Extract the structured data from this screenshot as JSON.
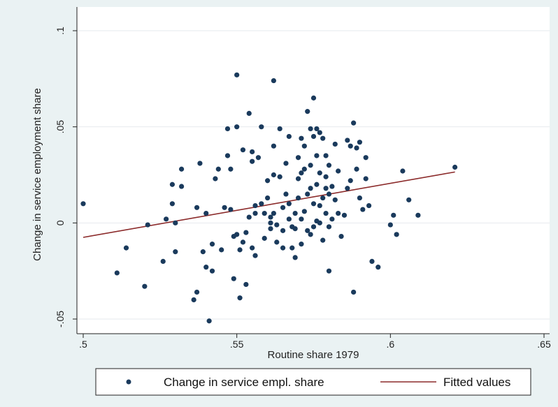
{
  "chart_data": {
    "type": "scatter",
    "title": "",
    "xlabel": "Routine share 1979",
    "ylabel": "Change in service employment share",
    "xlim": [
      0.5,
      0.65
    ],
    "ylim": [
      -0.05,
      0.1
    ],
    "x_ticks": [
      {
        "value": 0.5,
        "label": ".5"
      },
      {
        "value": 0.55,
        "label": ".55"
      },
      {
        "value": 0.6,
        "label": ".6"
      },
      {
        "value": 0.65,
        "label": ".65"
      }
    ],
    "y_ticks": [
      {
        "value": -0.05,
        "label": "-.05"
      },
      {
        "value": 0,
        "label": "0"
      },
      {
        "value": 0.05,
        "label": ".05"
      },
      {
        "value": 0.1,
        "label": ".1"
      }
    ],
    "grid": "horizontal",
    "legend_position": "bottom",
    "colors": {
      "points": "#1a3a5c",
      "fit": "#8b2a2a",
      "plot_background": "#ffffff",
      "outer_background": "#eaf2f3"
    },
    "series": [
      {
        "name": "Change in service empl. share",
        "kind": "scatter",
        "points": [
          [
            0.5,
            0.01
          ],
          [
            0.511,
            -0.026
          ],
          [
            0.514,
            -0.013
          ],
          [
            0.52,
            -0.033
          ],
          [
            0.521,
            -0.001
          ],
          [
            0.526,
            -0.02
          ],
          [
            0.527,
            0.002
          ],
          [
            0.529,
            0.02
          ],
          [
            0.529,
            0.01
          ],
          [
            0.53,
            0
          ],
          [
            0.53,
            -0.015
          ],
          [
            0.532,
            0.019
          ],
          [
            0.532,
            0.028
          ],
          [
            0.536,
            -0.04
          ],
          [
            0.537,
            -0.036
          ],
          [
            0.537,
            0.008
          ],
          [
            0.538,
            0.031
          ],
          [
            0.539,
            -0.015
          ],
          [
            0.54,
            -0.023
          ],
          [
            0.54,
            0.005
          ],
          [
            0.541,
            -0.051
          ],
          [
            0.542,
            -0.011
          ],
          [
            0.542,
            -0.025
          ],
          [
            0.543,
            0.023
          ],
          [
            0.544,
            0.028
          ],
          [
            0.545,
            -0.014
          ],
          [
            0.546,
            0.008
          ],
          [
            0.547,
            0.049
          ],
          [
            0.547,
            0.035
          ],
          [
            0.548,
            0.028
          ],
          [
            0.548,
            0.007
          ],
          [
            0.549,
            -0.007
          ],
          [
            0.549,
            -0.029
          ],
          [
            0.55,
            0.077
          ],
          [
            0.55,
            0.05
          ],
          [
            0.55,
            -0.006
          ],
          [
            0.551,
            -0.039
          ],
          [
            0.551,
            -0.014
          ],
          [
            0.552,
            0.038
          ],
          [
            0.552,
            -0.01
          ],
          [
            0.553,
            -0.032
          ],
          [
            0.553,
            -0.005
          ],
          [
            0.554,
            0.057
          ],
          [
            0.554,
            0.003
          ],
          [
            0.555,
            0.037
          ],
          [
            0.555,
            0.032
          ],
          [
            0.555,
            -0.013
          ],
          [
            0.556,
            0.009
          ],
          [
            0.556,
            0.005
          ],
          [
            0.556,
            -0.017
          ],
          [
            0.557,
            0.034
          ],
          [
            0.558,
            0.05
          ],
          [
            0.558,
            0.01
          ],
          [
            0.559,
            0.005
          ],
          [
            0.559,
            -0.008
          ],
          [
            0.56,
            0.022
          ],
          [
            0.56,
            0.013
          ],
          [
            0.561,
            0.003
          ],
          [
            0.561,
            0
          ],
          [
            0.561,
            -0.003
          ],
          [
            0.562,
            0.074
          ],
          [
            0.562,
            0.04
          ],
          [
            0.562,
            0.025
          ],
          [
            0.562,
            0.005
          ],
          [
            0.563,
            -0.001
          ],
          [
            0.563,
            -0.01
          ],
          [
            0.564,
            0.049
          ],
          [
            0.564,
            0.024
          ],
          [
            0.565,
            0.008
          ],
          [
            0.565,
            -0.004
          ],
          [
            0.565,
            -0.013
          ],
          [
            0.566,
            0.031
          ],
          [
            0.566,
            0.015
          ],
          [
            0.567,
            0.045
          ],
          [
            0.567,
            0.01
          ],
          [
            0.567,
            0.002
          ],
          [
            0.568,
            -0.002
          ],
          [
            0.568,
            -0.013
          ],
          [
            0.569,
            -0.018
          ],
          [
            0.569,
            0.005
          ],
          [
            0.569,
            -0.003
          ],
          [
            0.57,
            0.034
          ],
          [
            0.57,
            0.023
          ],
          [
            0.57,
            0.013
          ],
          [
            0.571,
            0.044
          ],
          [
            0.571,
            0.026
          ],
          [
            0.571,
            0.002
          ],
          [
            0.571,
            -0.011
          ],
          [
            0.572,
            0.04
          ],
          [
            0.572,
            0.028
          ],
          [
            0.572,
            0.006
          ],
          [
            0.573,
            0.058
          ],
          [
            0.573,
            0.015
          ],
          [
            0.573,
            -0.004
          ],
          [
            0.574,
            0.049
          ],
          [
            0.574,
            0.03
          ],
          [
            0.574,
            0.018
          ],
          [
            0.574,
            -0.006
          ],
          [
            0.575,
            0.065
          ],
          [
            0.575,
            0.045
          ],
          [
            0.575,
            0.01
          ],
          [
            0.575,
            -0.002
          ],
          [
            0.576,
            0.049
          ],
          [
            0.576,
            0.035
          ],
          [
            0.576,
            0.02
          ],
          [
            0.576,
            0.001
          ],
          [
            0.577,
            0.047
          ],
          [
            0.577,
            0.026
          ],
          [
            0.577,
            0.009
          ],
          [
            0.577,
            0
          ],
          [
            0.578,
            0.044
          ],
          [
            0.578,
            0.013
          ],
          [
            0.578,
            -0.009
          ],
          [
            0.579,
            0.035
          ],
          [
            0.579,
            0.024
          ],
          [
            0.579,
            0.018
          ],
          [
            0.579,
            0.005
          ],
          [
            0.58,
            0.03
          ],
          [
            0.58,
            0.015
          ],
          [
            0.58,
            -0.025
          ],
          [
            0.58,
            -0.002
          ],
          [
            0.581,
            0.019
          ],
          [
            0.581,
            0.002
          ],
          [
            0.582,
            0.041
          ],
          [
            0.582,
            0.012
          ],
          [
            0.583,
            0.027
          ],
          [
            0.583,
            0.005
          ],
          [
            0.584,
            -0.007
          ],
          [
            0.585,
            0.004
          ],
          [
            0.586,
            0.018
          ],
          [
            0.586,
            0.043
          ],
          [
            0.587,
            0.04
          ],
          [
            0.587,
            0.022
          ],
          [
            0.588,
            0.052
          ],
          [
            0.588,
            -0.036
          ],
          [
            0.589,
            0.028
          ],
          [
            0.589,
            0.039
          ],
          [
            0.59,
            0.013
          ],
          [
            0.59,
            0.042
          ],
          [
            0.591,
            0.007
          ],
          [
            0.592,
            0.034
          ],
          [
            0.592,
            0.023
          ],
          [
            0.593,
            0.009
          ],
          [
            0.594,
            -0.02
          ],
          [
            0.596,
            -0.023
          ],
          [
            0.6,
            -0.001
          ],
          [
            0.601,
            0.004
          ],
          [
            0.602,
            -0.006
          ],
          [
            0.604,
            0.027
          ],
          [
            0.606,
            0.012
          ],
          [
            0.609,
            0.004
          ],
          [
            0.621,
            0.029
          ]
        ]
      },
      {
        "name": "Fitted values",
        "kind": "line",
        "points": [
          [
            0.5,
            -0.0075
          ],
          [
            0.621,
            0.0265
          ]
        ]
      }
    ]
  },
  "legend": {
    "items": [
      {
        "label": "Change in service empl. share",
        "marker": "dot"
      },
      {
        "label": "Fitted values",
        "marker": "line"
      }
    ]
  }
}
